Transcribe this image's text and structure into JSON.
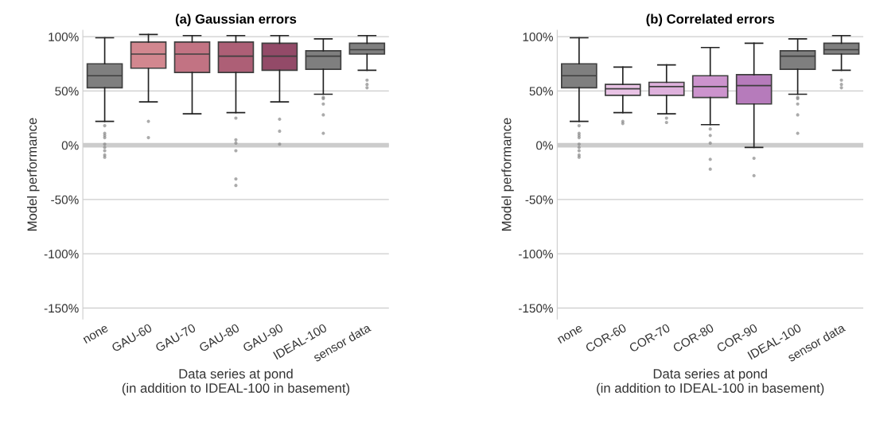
{
  "chart_data": [
    {
      "type": "box",
      "title": "(a) Gaussian errors",
      "xlabel": "Data series at pond\n(in addition to IDEAL-100 in basement)",
      "ylabel": "Model performance",
      "categories": [
        "none",
        "GAU-60",
        "GAU-70",
        "GAU-80",
        "GAU-90",
        "IDEAL-100",
        "sensor data"
      ],
      "colors": [
        "#7f7f7f",
        "#d2878f",
        "#c27383",
        "#ad5f76",
        "#934a68",
        "#7f7f7f",
        "#7f7f7f"
      ],
      "boxes": [
        {
          "low": 22,
          "q1": 53,
          "median": 64,
          "q3": 75,
          "high": 99,
          "outliers": [
            18,
            11,
            9,
            7,
            1,
            -2,
            -5,
            -9,
            -11
          ]
        },
        {
          "low": 40,
          "q1": 71,
          "median": 84,
          "q3": 95,
          "high": 102,
          "outliers": [
            22,
            7
          ]
        },
        {
          "low": 29,
          "q1": 67,
          "median": 84,
          "q3": 95,
          "high": 101
        },
        {
          "low": 30,
          "q1": 67,
          "median": 82,
          "q3": 95,
          "high": 101,
          "outliers": [
            25,
            5,
            2,
            -5,
            -31,
            -37
          ]
        },
        {
          "low": 40,
          "q1": 69,
          "median": 82,
          "q3": 94,
          "high": 101,
          "outliers": [
            24,
            13,
            1
          ]
        },
        {
          "low": 47,
          "q1": 70,
          "median": 82,
          "q3": 87,
          "high": 98,
          "outliers": [
            44,
            43,
            38,
            28,
            11
          ]
        },
        {
          "low": 69,
          "q1": 84,
          "median": 88,
          "q3": 94,
          "high": 101,
          "outliers": [
            60,
            56,
            53
          ]
        }
      ],
      "ylim": [
        -160,
        106
      ],
      "yticks": [
        {
          "value": 100,
          "label": "100%"
        },
        {
          "value": 50,
          "label": "50%"
        },
        {
          "value": 0,
          "label": "0%"
        },
        {
          "value": -50,
          "label": "-50%"
        },
        {
          "value": -100,
          "label": "-100%"
        },
        {
          "value": -150,
          "label": "-150%"
        }
      ],
      "grid": "y",
      "ref_lines": [
        {
          "axis": "y",
          "value": 0,
          "color": "#cccccc"
        }
      ]
    },
    {
      "type": "box",
      "title": "(b) Correlated errors",
      "xlabel": "Data series at pond\n(in addition to IDEAL-100 in basement)",
      "ylabel": "Model performance",
      "categories": [
        "none",
        "COR-60",
        "COR-70",
        "COR-80",
        "COR-90",
        "IDEAL-100",
        "sensor data"
      ],
      "colors": [
        "#7f7f7f",
        "#e9c3e5",
        "#deb1dc",
        "#cc93cd",
        "#b67bbb",
        "#7f7f7f",
        "#7f7f7f"
      ],
      "boxes": [
        {
          "low": 22,
          "q1": 53,
          "median": 64,
          "q3": 75,
          "high": 99,
          "outliers": [
            18,
            11,
            9,
            7,
            1,
            -2,
            -5,
            -9,
            -11
          ]
        },
        {
          "low": 30,
          "q1": 46,
          "median": 52,
          "q3": 56,
          "high": 72,
          "outliers": [
            22,
            20
          ]
        },
        {
          "low": 29,
          "q1": 46,
          "median": 54,
          "q3": 58,
          "high": 74,
          "outliers": [
            25,
            21
          ]
        },
        {
          "low": 19,
          "q1": 44,
          "median": 54,
          "q3": 64,
          "high": 90,
          "outliers": [
            15,
            9,
            2,
            -13,
            -22
          ]
        },
        {
          "low": -2,
          "q1": 38,
          "median": 55,
          "q3": 65,
          "high": 94,
          "outliers": [
            -12,
            -28
          ]
        },
        {
          "low": 47,
          "q1": 70,
          "median": 82,
          "q3": 87,
          "high": 98,
          "outliers": [
            44,
            43,
            38,
            28,
            11
          ]
        },
        {
          "low": 69,
          "q1": 84,
          "median": 88,
          "q3": 94,
          "high": 101,
          "outliers": [
            60,
            56,
            53
          ]
        }
      ],
      "ylim": [
        -160,
        106
      ],
      "yticks": [
        {
          "value": 100,
          "label": "100%"
        },
        {
          "value": 50,
          "label": "50%"
        },
        {
          "value": 0,
          "label": "0%"
        },
        {
          "value": -50,
          "label": "-50%"
        },
        {
          "value": -100,
          "label": "-100%"
        },
        {
          "value": -150,
          "label": "-150%"
        }
      ],
      "grid": "y",
      "ref_lines": [
        {
          "axis": "y",
          "value": 0,
          "color": "#cccccc"
        }
      ]
    }
  ]
}
